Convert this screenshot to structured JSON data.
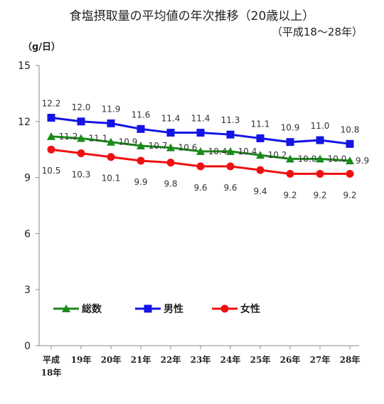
{
  "chart_data": {
    "type": "line",
    "title": "食塩摂取量の平均値の年次推移（20歳以上）",
    "subtitle": "（平成18〜28年）",
    "ylabel": "（g/日）",
    "ylim": [
      0,
      15
    ],
    "yticks": [
      "0",
      "3",
      "6",
      "9",
      "12",
      "15"
    ],
    "categories": [
      [
        "平成",
        "18年"
      ],
      [
        "19年"
      ],
      [
        "20年"
      ],
      [
        "21年"
      ],
      [
        "22年"
      ],
      [
        "23年"
      ],
      [
        "24年"
      ],
      [
        "25年"
      ],
      [
        "26年"
      ],
      [
        "27年"
      ],
      [
        "28年"
      ]
    ],
    "series": [
      {
        "name": "総数",
        "color": "#1a8a1a",
        "marker": "triangle",
        "values": [
          11.2,
          11.1,
          10.9,
          10.7,
          10.6,
          10.4,
          10.4,
          10.2,
          10.0,
          10.0,
          9.9
        ],
        "labels": [
          "11.2",
          "11.1",
          "10.9",
          "10.7",
          "10.6",
          "10.4",
          "10.4",
          "10.2",
          "10.0",
          "10.0",
          "9.9"
        ]
      },
      {
        "name": "男性",
        "color": "#1414e6",
        "marker": "square",
        "values": [
          12.2,
          12.0,
          11.9,
          11.6,
          11.4,
          11.4,
          11.3,
          11.1,
          10.9,
          11.0,
          10.8
        ],
        "labels": [
          "12.2",
          "12.0",
          "11.9",
          "11.6",
          "11.4",
          "11.4",
          "11.3",
          "11.1",
          "10.9",
          "11.0",
          "10.8"
        ]
      },
      {
        "name": "女性",
        "color": "#ee1111",
        "marker": "circle",
        "values": [
          10.5,
          10.3,
          10.1,
          9.9,
          9.8,
          9.6,
          9.6,
          9.4,
          9.2,
          9.2,
          9.2
        ],
        "labels": [
          "10.5",
          "10.3",
          "10.1",
          "9.9",
          "9.8",
          "9.6",
          "9.6",
          "9.4",
          "9.2",
          "9.2",
          "9.2"
        ]
      }
    ],
    "legend": "inside-bottom-left",
    "grid": false
  }
}
